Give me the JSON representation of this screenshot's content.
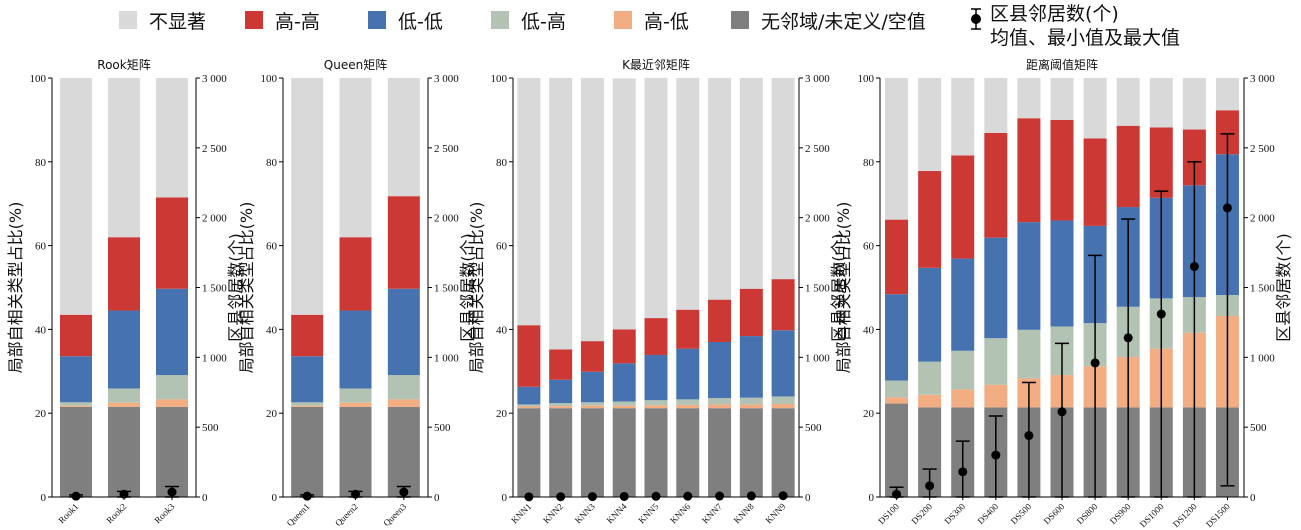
{
  "legend": {
    "items": [
      {
        "label": "不显著",
        "color": "#d9d9d9"
      },
      {
        "label": "高-高",
        "color": "#cc3833"
      },
      {
        "label": "低-低",
        "color": "#4672b0"
      },
      {
        "label": "低-高",
        "color": "#b3c3b3"
      },
      {
        "label": "高-低",
        "color": "#f2ad83"
      },
      {
        "label": "无邻域/未定义/空值",
        "color": "#7f7f7f"
      }
    ],
    "errorbar_label_line1": "区县邻居数(个)",
    "errorbar_label_line2": "均值、最小值及最大值"
  },
  "axes": {
    "left_ticks": [
      "0",
      "20",
      "40",
      "60",
      "80",
      "100"
    ],
    "right_ticks": [
      "0",
      "500",
      "1 000",
      "1 500",
      "2 000",
      "2 500",
      "3 000"
    ],
    "left_title": "局部自相关类型占比(%)",
    "right_title": "区县邻居数(个)"
  },
  "chart_data": [
    {
      "type": "bar",
      "stacked": true,
      "title": "Rook矩阵",
      "ylabel": "局部自相关类型占比(%)",
      "y2label": "区县邻居数(个)",
      "ylim": [
        0,
        100
      ],
      "y2lim": [
        0,
        3000
      ],
      "categories": [
        "Rook1",
        "Rook2",
        "Rook3"
      ],
      "series": [
        {
          "name": "无邻域/未定义/空值",
          "values": [
            21.5,
            21.5,
            21.5
          ]
        },
        {
          "name": "高-低",
          "values": [
            0.3,
            1.0,
            1.8
          ]
        },
        {
          "name": "低-高",
          "values": [
            0.8,
            3.4,
            5.8
          ]
        },
        {
          "name": "低-低",
          "values": [
            11.0,
            18.6,
            20.6
          ]
        },
        {
          "name": "高-高",
          "values": [
            9.9,
            17.5,
            21.8
          ]
        },
        {
          "name": "不显著",
          "values": [
            56.5,
            38.0,
            28.5
          ]
        }
      ],
      "neighbors": {
        "mean": [
          6,
          20,
          35
        ],
        "min": [
          0,
          0,
          0
        ],
        "max": [
          15,
          40,
          75
        ]
      }
    },
    {
      "type": "bar",
      "stacked": true,
      "title": "Queen矩阵",
      "ylabel": "局部自相关类型占比(%)",
      "y2label": "区县邻居数(个)",
      "ylim": [
        0,
        100
      ],
      "y2lim": [
        0,
        3000
      ],
      "categories": [
        "Queen1",
        "Queen2",
        "Queen3"
      ],
      "series": [
        {
          "name": "无邻域/未定义/空值",
          "values": [
            21.5,
            21.5,
            21.5
          ]
        },
        {
          "name": "高-低",
          "values": [
            0.3,
            1.0,
            1.8
          ]
        },
        {
          "name": "低-高",
          "values": [
            0.8,
            3.4,
            5.8
          ]
        },
        {
          "name": "低-低",
          "values": [
            11.0,
            18.6,
            20.6
          ]
        },
        {
          "name": "高-高",
          "values": [
            9.9,
            17.5,
            22.1
          ]
        },
        {
          "name": "不显著",
          "values": [
            56.5,
            38.0,
            28.2
          ]
        }
      ],
      "neighbors": {
        "mean": [
          6,
          20,
          35
        ],
        "min": [
          0,
          0,
          0
        ],
        "max": [
          15,
          40,
          75
        ]
      }
    },
    {
      "type": "bar",
      "stacked": true,
      "title": "K最近邻矩阵",
      "ylabel": "局部自相关类型占比(%)",
      "y2label": "区县邻居数(个)",
      "ylim": [
        0,
        100
      ],
      "y2lim": [
        0,
        3000
      ],
      "categories": [
        "KNN1",
        "KNN2",
        "KNN3",
        "KNN4",
        "KNN5",
        "KNN6",
        "KNN7",
        "KNN8",
        "KNN9"
      ],
      "series": [
        {
          "name": "无邻域/未定义/空值",
          "values": [
            21.2,
            21.2,
            21.2,
            21.2,
            21.2,
            21.2,
            21.2,
            21.2,
            21.2
          ]
        },
        {
          "name": "高-低",
          "values": [
            0.4,
            0.5,
            0.6,
            0.6,
            0.7,
            0.8,
            0.9,
            0.9,
            1.0
          ]
        },
        {
          "name": "低-高",
          "values": [
            0.5,
            0.7,
            0.8,
            1.0,
            1.2,
            1.3,
            1.5,
            1.6,
            1.8
          ]
        },
        {
          "name": "低-低",
          "values": [
            4.2,
            5.6,
            7.3,
            9.1,
            10.8,
            12.1,
            13.4,
            14.7,
            15.8
          ]
        },
        {
          "name": "高-高",
          "values": [
            14.7,
            7.2,
            7.3,
            8.1,
            8.8,
            9.3,
            10.1,
            11.3,
            12.2
          ]
        },
        {
          "name": "不显著",
          "values": [
            59.0,
            64.8,
            62.8,
            59.9,
            57.3,
            55.3,
            52.9,
            50.3,
            48.0
          ]
        }
      ],
      "neighbors": {
        "mean": [
          1,
          2,
          3,
          4,
          5,
          6,
          7,
          8,
          9
        ],
        "min": [
          1,
          2,
          3,
          4,
          5,
          6,
          7,
          8,
          9
        ],
        "max": [
          1,
          2,
          3,
          4,
          5,
          6,
          7,
          8,
          9
        ]
      }
    },
    {
      "type": "bar",
      "stacked": true,
      "title": "距离阈值矩阵",
      "ylabel": "局部自相关类型占比(%)",
      "y2label": "区县邻居数(个)",
      "ylim": [
        0,
        100
      ],
      "y2lim": [
        0,
        3000
      ],
      "categories": [
        "DS100",
        "DS200",
        "DS300",
        "DS400",
        "DS500",
        "DS600",
        "DS800",
        "DS900",
        "DS1000",
        "DS1200",
        "DS1500"
      ],
      "series": [
        {
          "name": "无邻域/未定义/空值",
          "values": [
            22.3,
            21.4,
            21.4,
            21.4,
            21.4,
            21.4,
            21.4,
            21.4,
            21.4,
            21.4,
            21.4
          ]
        },
        {
          "name": "高-低",
          "values": [
            1.5,
            3.0,
            4.3,
            5.4,
            6.9,
            7.7,
            9.8,
            12.0,
            14.0,
            17.8,
            21.8
          ]
        },
        {
          "name": "低-高",
          "values": [
            4.0,
            7.9,
            9.2,
            11.1,
            11.6,
            11.6,
            10.3,
            12.0,
            12.0,
            8.5,
            5.0
          ]
        },
        {
          "name": "低-低",
          "values": [
            20.6,
            22.4,
            22.0,
            24.0,
            25.7,
            25.3,
            23.2,
            23.8,
            24.0,
            26.7,
            33.6
          ]
        },
        {
          "name": "高-高",
          "values": [
            17.8,
            23.1,
            24.6,
            25.0,
            24.8,
            24.0,
            20.9,
            19.4,
            16.8,
            13.3,
            10.5
          ]
        },
        {
          "name": "不显著",
          "values": [
            33.8,
            22.2,
            18.5,
            13.1,
            9.6,
            10.0,
            14.4,
            11.4,
            11.8,
            12.3,
            7.7
          ]
        }
      ],
      "neighbors": {
        "mean": [
          20,
          80,
          180,
          300,
          440,
          610,
          960,
          1140,
          1310,
          1650,
          2070
        ],
        "min": [
          0,
          0,
          0,
          0,
          0,
          0,
          0,
          0,
          0,
          0,
          80
        ],
        "max": [
          70,
          200,
          400,
          580,
          820,
          1100,
          1730,
          1990,
          2190,
          2400,
          2600
        ]
      }
    }
  ]
}
